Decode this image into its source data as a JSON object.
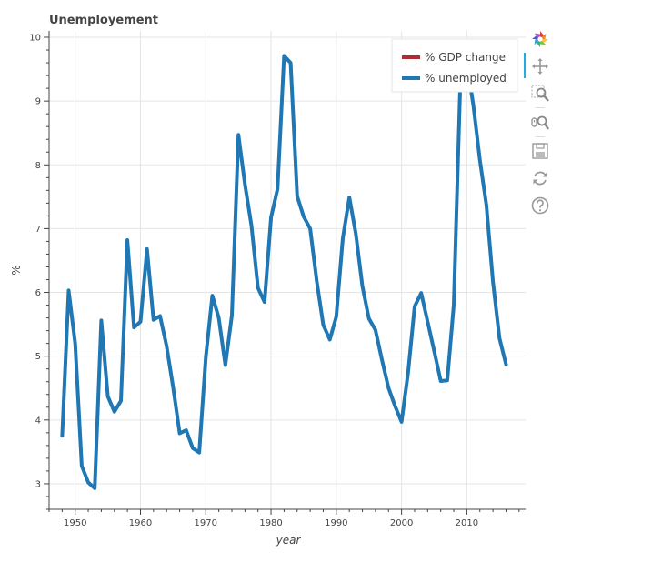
{
  "chart_data": {
    "type": "line",
    "title": "Unemployement",
    "xlabel": "year",
    "ylabel": "%",
    "xlim": [
      1946,
      2019
    ],
    "ylim": [
      2.6,
      10.1
    ],
    "xticks": [
      1950,
      1960,
      1970,
      1980,
      1990,
      2000,
      2010
    ],
    "yticks": [
      3,
      4,
      5,
      6,
      7,
      8,
      9,
      10
    ],
    "grid": true,
    "legend_position": "top-right",
    "legend": [
      {
        "label": "% GDP change",
        "color": "#b2292e"
      },
      {
        "label": "% unemployed",
        "color": "#1f77b4"
      }
    ],
    "series": [
      {
        "name": "% unemployed",
        "color": "#1f77b4",
        "x": [
          1948,
          1949,
          1950,
          1951,
          1952,
          1953,
          1954,
          1955,
          1956,
          1957,
          1958,
          1959,
          1960,
          1961,
          1962,
          1963,
          1964,
          1965,
          1966,
          1967,
          1968,
          1969,
          1970,
          1971,
          1972,
          1973,
          1974,
          1975,
          1976,
          1977,
          1978,
          1979,
          1980,
          1981,
          1982,
          1983,
          1984,
          1985,
          1986,
          1987,
          1988,
          1989,
          1990,
          1991,
          1992,
          1993,
          1994,
          1995,
          1996,
          1997,
          1998,
          1999,
          2000,
          2001,
          2002,
          2003,
          2004,
          2005,
          2006,
          2007,
          2008,
          2009,
          2010,
          2011,
          2012,
          2013,
          2014,
          2015,
          2016
        ],
        "values": [
          3.75,
          6.03,
          5.2,
          3.28,
          3.02,
          2.93,
          5.56,
          4.37,
          4.13,
          4.3,
          6.82,
          5.45,
          5.54,
          6.68,
          5.57,
          5.63,
          5.16,
          4.51,
          3.79,
          3.84,
          3.56,
          3.49,
          4.98,
          5.95,
          5.6,
          4.86,
          5.64,
          8.47,
          7.7,
          7.05,
          6.07,
          5.85,
          7.18,
          7.62,
          9.71,
          9.6,
          7.51,
          7.19,
          7.0,
          6.18,
          5.49,
          5.26,
          5.62,
          6.85,
          7.49,
          6.91,
          6.1,
          5.59,
          5.41,
          4.94,
          4.5,
          4.22,
          3.97,
          4.74,
          5.78,
          5.99,
          5.54,
          5.08,
          4.61,
          4.62,
          5.8,
          9.28,
          9.61,
          8.93,
          8.07,
          7.37,
          6.17,
          5.28,
          4.87
        ]
      }
    ]
  }
}
